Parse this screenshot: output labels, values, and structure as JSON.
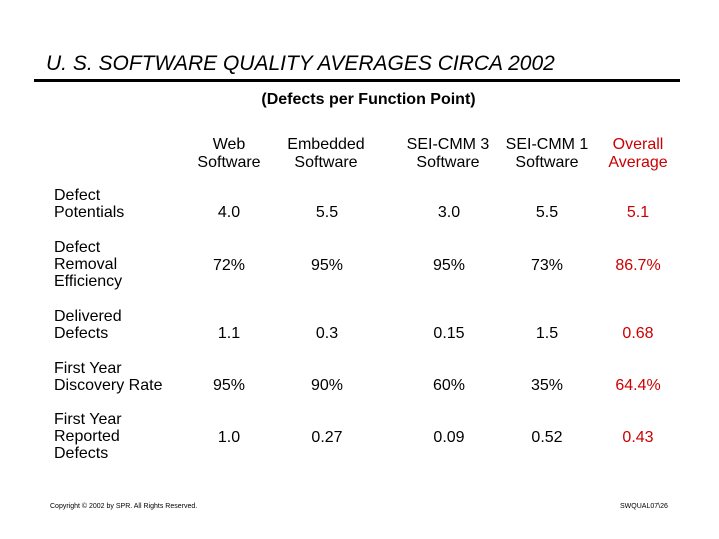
{
  "title": "U. S. SOFTWARE QUALITY AVERAGES CIRCA 2002",
  "subtitle": "(Defects per Function Point)",
  "columns": [
    {
      "line1": "Web",
      "line2": "Software"
    },
    {
      "line1": "Embedded",
      "line2": "Software"
    },
    {
      "line1": "SEI-CMM 3",
      "line2": "Software"
    },
    {
      "line1": "SEI-CMM 1",
      "line2": "Software"
    },
    {
      "line1": "Overall",
      "line2": "Average"
    }
  ],
  "rows": [
    {
      "label": [
        "Defect",
        "Potentials"
      ],
      "values": [
        "4.0",
        "5.5",
        "3.0",
        "5.5",
        "5.1"
      ]
    },
    {
      "label": [
        "Defect",
        "Removal",
        "Efficiency"
      ],
      "values": [
        "72%",
        "95%",
        "95%",
        "73%",
        "86.7%"
      ]
    },
    {
      "label": [
        "Delivered",
        "Defects"
      ],
      "values": [
        "1.1",
        "0.3",
        "0.15",
        "1.5",
        "0.68"
      ]
    },
    {
      "label": [
        "First Year",
        "Discovery Rate"
      ],
      "values": [
        "95%",
        "90%",
        "60%",
        "35%",
        "64.4%"
      ]
    },
    {
      "label": [
        "First Year",
        "Reported",
        "Defects"
      ],
      "values": [
        "1.0",
        "0.27",
        "0.09",
        "0.52",
        "0.43"
      ]
    }
  ],
  "footer": {
    "copyright": "Copyright © 2002 by SPR.  All Rights Reserved.",
    "code": "SWQUAL07\\26"
  },
  "colors": {
    "highlight": "#cc0000",
    "text": "#000000"
  }
}
